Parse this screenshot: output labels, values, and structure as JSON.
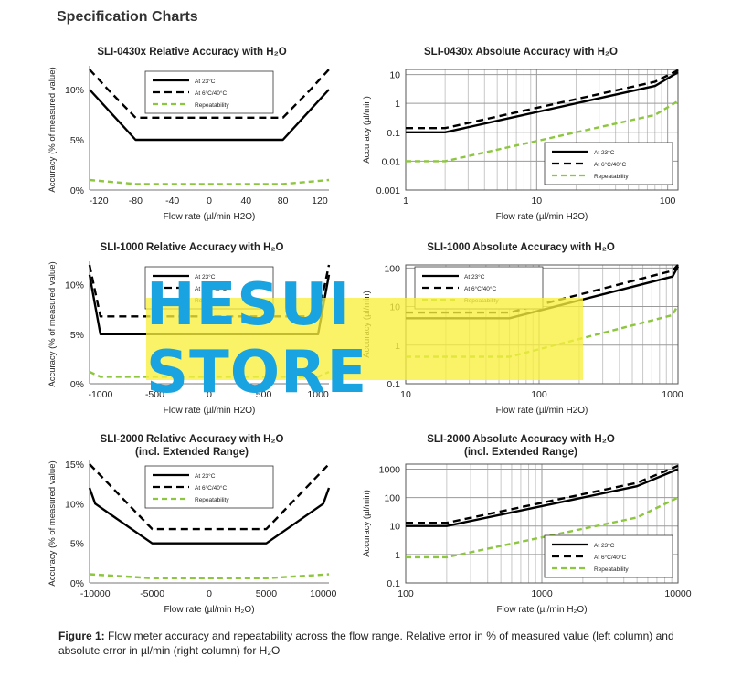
{
  "header": "Specification Charts",
  "caption": {
    "label": "Figure 1:",
    "text": " Flow meter accuracy and repeatability across the flow range. Relative error in % of measured value (left column) and absolute error in µl/min (right column) for H₂O"
  },
  "watermark": "HESUI STORE",
  "colors": {
    "at23": "#000000",
    "at6_40": "#000000",
    "repeatability": "#8dc63f"
  },
  "chart_data": [
    {
      "id": "c1",
      "type": "line",
      "title": "SLI-0430x Relative Accuracy with H₂O",
      "xlabel": "Flow rate (µl/min H2O)",
      "ylabel": "Accuracy (% of measured value)",
      "xscale": "linear",
      "yscale": "linear",
      "xlim": [
        -130,
        130
      ],
      "ylim": [
        0,
        12
      ],
      "xticks": [
        -120,
        -80,
        -40,
        0,
        40,
        80,
        120
      ],
      "xtick_labels": [
        "-120",
        "-80",
        "-40",
        "0",
        "40",
        "80",
        "120"
      ],
      "yticks": [
        0,
        5,
        10
      ],
      "ytick_labels": [
        "0%",
        "5%",
        "10%"
      ],
      "legend": "top-center",
      "series": [
        {
          "name": "At 23°C",
          "style": "solid",
          "points": [
            [
              -130,
              10
            ],
            [
              -80,
              5
            ],
            [
              80,
              5
            ],
            [
              130,
              10
            ]
          ]
        },
        {
          "name": "At 6°C/40°C",
          "style": "dashed",
          "points": [
            [
              -130,
              12
            ],
            [
              -110,
              10
            ],
            [
              -80,
              7.2
            ],
            [
              80,
              7.2
            ],
            [
              110,
              10
            ],
            [
              130,
              12
            ]
          ]
        },
        {
          "name": "Repeatability",
          "style": "green-dashed",
          "points": [
            [
              -130,
              1
            ],
            [
              -80,
              0.6
            ],
            [
              80,
              0.6
            ],
            [
              130,
              1
            ]
          ]
        }
      ]
    },
    {
      "id": "c2",
      "type": "line",
      "title": "SLI-0430x Absolute Accuracy with H₂O",
      "xlabel": "Flow rate (µl/min H2O)",
      "ylabel": "Accuracy (µl/min)",
      "xscale": "log",
      "yscale": "log",
      "xlim": [
        1,
        120
      ],
      "ylim": [
        0.001,
        15
      ],
      "xticks": [
        1,
        10,
        100
      ],
      "xtick_labels": [
        "1",
        "10",
        "100"
      ],
      "yticks": [
        0.001,
        0.01,
        0.1,
        1,
        10
      ],
      "ytick_labels": [
        "0.001",
        "0.01",
        "0.1",
        "1",
        "10"
      ],
      "legend": "bottom-right",
      "series": [
        {
          "name": "At 23°C",
          "style": "solid",
          "points": [
            [
              1,
              0.1
            ],
            [
              2,
              0.1
            ],
            [
              80,
              4
            ],
            [
              120,
              12
            ]
          ]
        },
        {
          "name": "At 6°C/40°C",
          "style": "dashed",
          "points": [
            [
              1,
              0.14
            ],
            [
              2,
              0.14
            ],
            [
              80,
              5.6
            ],
            [
              120,
              14
            ]
          ]
        },
        {
          "name": "Repeatability",
          "style": "green-dashed",
          "points": [
            [
              1,
              0.01
            ],
            [
              2,
              0.01
            ],
            [
              80,
              0.4
            ],
            [
              120,
              1.2
            ]
          ]
        }
      ]
    },
    {
      "id": "c3",
      "type": "line",
      "title": "SLI-1000 Relative Accuracy with H₂O",
      "xlabel": "Flow rate (µl/min H2O)",
      "ylabel": "Accuracy (% of measured value)",
      "xscale": "linear",
      "yscale": "linear",
      "xlim": [
        -1100,
        1100
      ],
      "ylim": [
        0,
        12
      ],
      "xticks": [
        -1000,
        -500,
        0,
        500,
        1000
      ],
      "xtick_labels": [
        "-1000",
        "-500",
        "0",
        "500",
        "1000"
      ],
      "yticks": [
        0,
        5,
        10
      ],
      "ytick_labels": [
        "0%",
        "5%",
        "10%"
      ],
      "legend": "top-center",
      "series": [
        {
          "name": "At 23°C",
          "style": "solid",
          "points": [
            [
              -1100,
              11
            ],
            [
              -1000,
              5
            ],
            [
              1000,
              5
            ],
            [
              1100,
              11
            ]
          ]
        },
        {
          "name": "At 6°C/40°C",
          "style": "dashed",
          "points": [
            [
              -1100,
              12
            ],
            [
              -1000,
              6.8
            ],
            [
              1000,
              6.8
            ],
            [
              1100,
              12
            ]
          ]
        },
        {
          "name": "Repeatability",
          "style": "green-dashed",
          "points": [
            [
              -1100,
              1.2
            ],
            [
              -1000,
              0.7
            ],
            [
              1000,
              0.7
            ],
            [
              1100,
              1.2
            ]
          ]
        }
      ]
    },
    {
      "id": "c4",
      "type": "line",
      "title": "SLI-1000 Absolute Accuracy with H₂O",
      "xlabel": "Flow rate (µl/min H2O)",
      "ylabel": "Accuracy (µl/min)",
      "xscale": "log",
      "yscale": "log",
      "xlim": [
        10,
        1100
      ],
      "ylim": [
        0.1,
        120
      ],
      "xticks": [
        10,
        100,
        1000
      ],
      "xtick_labels": [
        "10",
        "100",
        "1000"
      ],
      "yticks": [
        0.1,
        1,
        10,
        100
      ],
      "ytick_labels": [
        "0.1",
        "1",
        "10",
        "100"
      ],
      "legend": "top-left",
      "series": [
        {
          "name": "At 23°C",
          "style": "solid",
          "points": [
            [
              10,
              5
            ],
            [
              60,
              5
            ],
            [
              1000,
              60
            ],
            [
              1100,
              110
            ]
          ]
        },
        {
          "name": "At 6°C/40°C",
          "style": "dashed",
          "points": [
            [
              10,
              7
            ],
            [
              60,
              7
            ],
            [
              1000,
              85
            ],
            [
              1100,
              120
            ]
          ]
        },
        {
          "name": "Repeatability",
          "style": "green-dashed",
          "points": [
            [
              10,
              0.5
            ],
            [
              60,
              0.5
            ],
            [
              1000,
              6
            ],
            [
              1100,
              11
            ]
          ]
        }
      ]
    },
    {
      "id": "c5",
      "type": "line",
      "title": "SLI-2000 Relative Accuracy with H₂O",
      "subtitle": "(incl. Extended Range)",
      "xlabel": "Flow rate (µl/min H₂O)",
      "ylabel": "Accuracy (% of measured value)",
      "xscale": "linear",
      "yscale": "linear",
      "xlim": [
        -10500,
        10500
      ],
      "ylim": [
        0,
        15
      ],
      "xticks": [
        -10000,
        -5000,
        0,
        5000,
        10000
      ],
      "xtick_labels": [
        "-10000",
        "-5000",
        "0",
        "5000",
        "10000"
      ],
      "yticks": [
        0,
        5,
        10,
        15
      ],
      "ytick_labels": [
        "0%",
        "5%",
        "10%",
        "15%"
      ],
      "legend": "top-center",
      "series": [
        {
          "name": "At 23°C",
          "style": "solid",
          "points": [
            [
              -10500,
              12
            ],
            [
              -10000,
              10
            ],
            [
              -5000,
              5
            ],
            [
              5000,
              5
            ],
            [
              10000,
              10
            ],
            [
              10500,
              12
            ]
          ]
        },
        {
          "name": "At 6°C/40°C",
          "style": "dashed",
          "points": [
            [
              -10500,
              15
            ],
            [
              -5000,
              6.8
            ],
            [
              5000,
              6.8
            ],
            [
              10500,
              15
            ]
          ]
        },
        {
          "name": "Repeatability",
          "style": "green-dashed",
          "points": [
            [
              -10500,
              1.1
            ],
            [
              -5000,
              0.6
            ],
            [
              5000,
              0.6
            ],
            [
              10500,
              1.1
            ]
          ]
        }
      ]
    },
    {
      "id": "c6",
      "type": "line",
      "title": "SLI-2000 Absolute Accuracy with H₂O",
      "subtitle": "(incl. Extended Range)",
      "xlabel": "Flow rate (µl/min H₂O)",
      "ylabel": "Accuracy (µl/min)",
      "xscale": "log",
      "yscale": "log",
      "xlim": [
        100,
        10000
      ],
      "ylim": [
        0.1,
        1500
      ],
      "xticks": [
        100,
        1000,
        10000
      ],
      "xtick_labels": [
        "100",
        "1000",
        "10000"
      ],
      "yticks": [
        0.1,
        1,
        10,
        100,
        1000
      ],
      "ytick_labels": [
        "0.1",
        "1",
        "10",
        "100",
        "1000"
      ],
      "legend": "bottom-right",
      "series": [
        {
          "name": "At 23°C",
          "style": "solid",
          "points": [
            [
              100,
              10
            ],
            [
              200,
              10
            ],
            [
              5000,
              250
            ],
            [
              10000,
              1000
            ]
          ]
        },
        {
          "name": "At 6°C/40°C",
          "style": "dashed",
          "points": [
            [
              100,
              13
            ],
            [
              200,
              13
            ],
            [
              5000,
              330
            ],
            [
              10000,
              1300
            ]
          ]
        },
        {
          "name": "Repeatability",
          "style": "green-dashed",
          "points": [
            [
              100,
              0.8
            ],
            [
              200,
              0.8
            ],
            [
              5000,
              20
            ],
            [
              10000,
              100
            ]
          ]
        }
      ]
    }
  ]
}
